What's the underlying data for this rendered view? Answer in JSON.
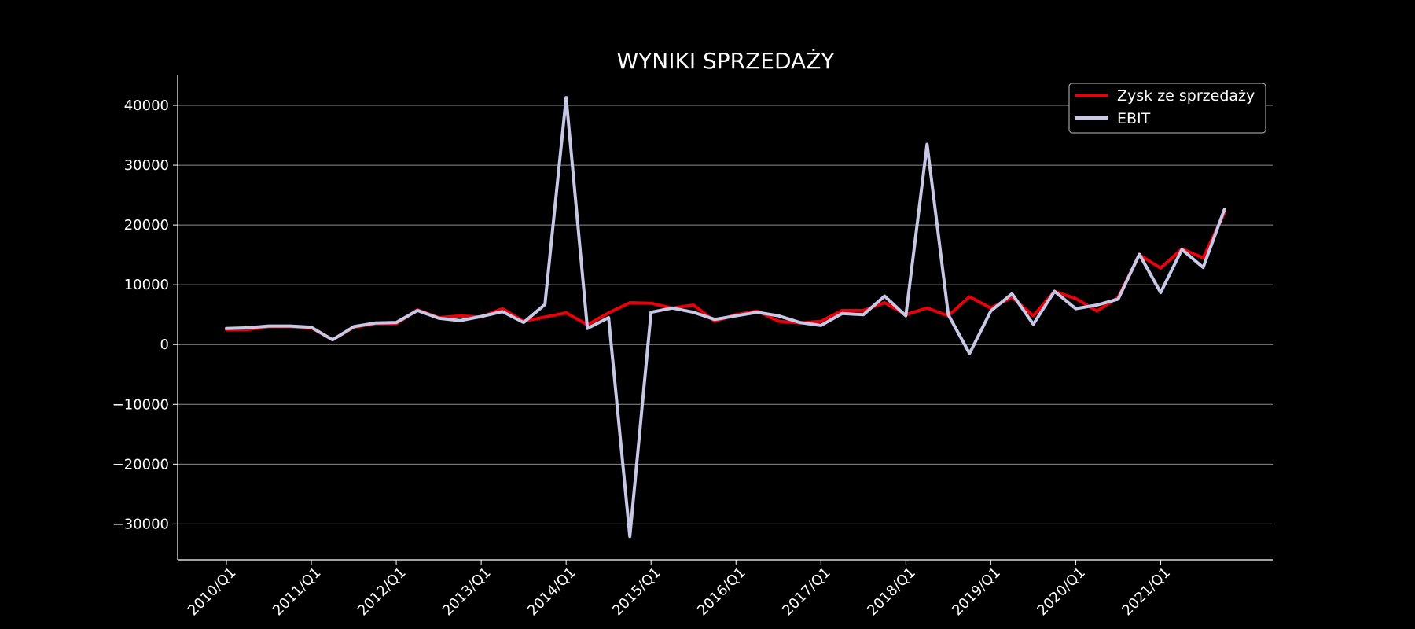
{
  "chart_data": {
    "type": "line",
    "title": "WYNIKI SPRZEDAŻY",
    "xlabel": "",
    "ylabel": "",
    "ylim": [
      -36000,
      45000
    ],
    "grid": "horizontal",
    "legend_position": "top-right",
    "colors": {
      "background": "#000000",
      "grid": "#8c8c8c",
      "axis": "#ffffff"
    },
    "x_tick_labels": [
      "2010/Q1",
      "2011/Q1",
      "2012/Q1",
      "2013/Q1",
      "2014/Q1",
      "2015/Q1",
      "2016/Q1",
      "2017/Q1",
      "2018/Q1",
      "2019/Q1",
      "2020/Q1",
      "2021/Q1"
    ],
    "y_ticks": [
      -30000,
      -20000,
      -10000,
      0,
      10000,
      20000,
      30000,
      40000
    ],
    "y_tick_labels": [
      "−30000",
      "−20000",
      "−10000",
      "0",
      "10000",
      "20000",
      "30000",
      "40000"
    ],
    "x": [
      "2010/Q1",
      "2010/Q2",
      "2010/Q3",
      "2010/Q4",
      "2011/Q1",
      "2011/Q2",
      "2011/Q3",
      "2011/Q4",
      "2012/Q1",
      "2012/Q2",
      "2012/Q3",
      "2012/Q4",
      "2013/Q1",
      "2013/Q2",
      "2013/Q3",
      "2013/Q4",
      "2014/Q1",
      "2014/Q2",
      "2014/Q3",
      "2014/Q4",
      "2015/Q1",
      "2015/Q2",
      "2015/Q3",
      "2015/Q4",
      "2016/Q1",
      "2016/Q2",
      "2016/Q3",
      "2016/Q4",
      "2017/Q1",
      "2017/Q2",
      "2017/Q3",
      "2017/Q4",
      "2018/Q1",
      "2018/Q2",
      "2018/Q3",
      "2018/Q4",
      "2019/Q1",
      "2019/Q2",
      "2019/Q3",
      "2019/Q4",
      "2020/Q1",
      "2020/Q2",
      "2020/Q3",
      "2020/Q4",
      "2021/Q1",
      "2021/Q2",
      "2021/Q3",
      "2021/Q4"
    ],
    "series": [
      {
        "name": "Zysk ze sprzedaży",
        "color": "#e8000b",
        "values": [
          2500,
          2500,
          3000,
          3000,
          2800,
          800,
          2900,
          3500,
          3500,
          5800,
          4500,
          4800,
          4600,
          6000,
          3900,
          4600,
          5300,
          3300,
          5300,
          7000,
          6900,
          6100,
          6600,
          3900,
          5000,
          5600,
          3900,
          3600,
          3900,
          5700,
          5700,
          7000,
          5000,
          6100,
          4800,
          8000,
          6100,
          7900,
          4800,
          8900,
          7700,
          5600,
          7900,
          15000,
          12800,
          16000,
          14500,
          22000
        ]
      },
      {
        "name": "EBIT",
        "color": "#c7c7e6",
        "values": [
          2700,
          2800,
          3100,
          3100,
          2900,
          800,
          3000,
          3600,
          3700,
          5700,
          4400,
          4000,
          4700,
          5500,
          3700,
          6700,
          41300,
          2700,
          4500,
          -32100,
          5400,
          6100,
          5400,
          4200,
          4800,
          5400,
          4800,
          3700,
          3200,
          5200,
          5000,
          8100,
          4800,
          33500,
          5000,
          -1500,
          5600,
          8500,
          3400,
          8900,
          6000,
          6600,
          7600,
          15100,
          8700,
          15900,
          12900,
          22600
        ]
      }
    ]
  }
}
